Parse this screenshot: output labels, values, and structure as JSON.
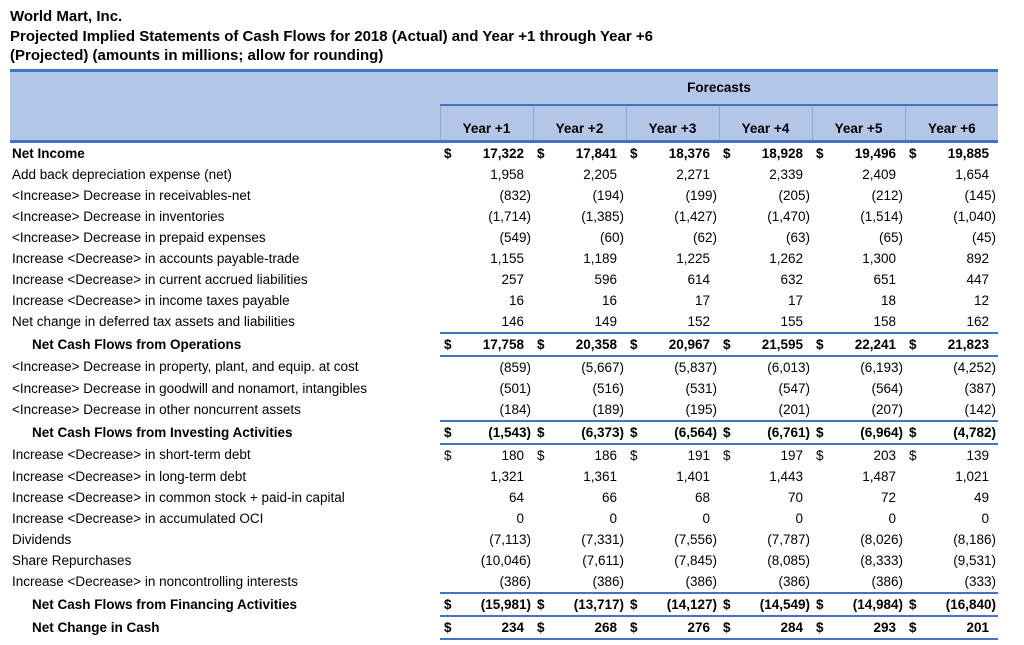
{
  "title": {
    "company": "World Mart, Inc.",
    "subtitle_line1": "Projected Implied Statements of Cash Flows for 2018 (Actual) and Year +1 through Year +6",
    "subtitle_line2": "(Projected) (amounts in millions; allow for rounding)"
  },
  "table": {
    "forecasts_label": "Forecasts",
    "currency_symbol": "$",
    "columns": [
      "Year +1",
      "Year +2",
      "Year +3",
      "Year +4",
      "Year +5",
      "Year +6"
    ],
    "rows": [
      {
        "label": "Net Income",
        "bold": true,
        "dollar": true,
        "total": false,
        "indent": false,
        "values": [
          "17,322",
          "17,841",
          "18,376",
          "18,928",
          "19,496",
          "19,885"
        ]
      },
      {
        "label": "Add back depreciation expense (net)",
        "bold": false,
        "dollar": false,
        "total": false,
        "indent": false,
        "values": [
          "1,958",
          "2,205",
          "2,271",
          "2,339",
          "2,409",
          "1,654"
        ]
      },
      {
        "label": "<Increase> Decrease in receivables-net",
        "bold": false,
        "dollar": false,
        "total": false,
        "indent": false,
        "values": [
          "(832)",
          "(194)",
          "(199)",
          "(205)",
          "(212)",
          "(145)"
        ]
      },
      {
        "label": "<Increase> Decrease in inventories",
        "bold": false,
        "dollar": false,
        "total": false,
        "indent": false,
        "values": [
          "(1,714)",
          "(1,385)",
          "(1,427)",
          "(1,470)",
          "(1,514)",
          "(1,040)"
        ]
      },
      {
        "label": "<Increase> Decrease in prepaid expenses",
        "bold": false,
        "dollar": false,
        "total": false,
        "indent": false,
        "values": [
          "(549)",
          "(60)",
          "(62)",
          "(63)",
          "(65)",
          "(45)"
        ]
      },
      {
        "label": "Increase <Decrease> in accounts payable-trade",
        "bold": false,
        "dollar": false,
        "total": false,
        "indent": false,
        "values": [
          "1,155",
          "1,189",
          "1,225",
          "1,262",
          "1,300",
          "892"
        ]
      },
      {
        "label": "Increase <Decrease> in current accrued liabilities",
        "bold": false,
        "dollar": false,
        "total": false,
        "indent": false,
        "values": [
          "257",
          "596",
          "614",
          "632",
          "651",
          "447"
        ]
      },
      {
        "label": "Increase <Decrease> in income taxes payable",
        "bold": false,
        "dollar": false,
        "total": false,
        "indent": false,
        "values": [
          "16",
          "16",
          "17",
          "17",
          "18",
          "12"
        ]
      },
      {
        "label": "Net change in deferred tax assets and liabilities",
        "bold": false,
        "dollar": false,
        "total": false,
        "indent": false,
        "values": [
          "146",
          "149",
          "152",
          "155",
          "158",
          "162"
        ]
      },
      {
        "label": "Net Cash Flows from Operations",
        "bold": true,
        "dollar": true,
        "total": true,
        "indent": true,
        "values": [
          "17,758",
          "20,358",
          "20,967",
          "21,595",
          "22,241",
          "21,823"
        ]
      },
      {
        "label": "<Increase> Decrease in property, plant, and equip. at cost",
        "bold": false,
        "dollar": false,
        "total": false,
        "indent": false,
        "values": [
          "(859)",
          "(5,667)",
          "(5,837)",
          "(6,013)",
          "(6,193)",
          "(4,252)"
        ]
      },
      {
        "label": "<Increase> Decrease in goodwill and nonamort, intangibles",
        "bold": false,
        "dollar": false,
        "total": false,
        "indent": false,
        "values": [
          "(501)",
          "(516)",
          "(531)",
          "(547)",
          "(564)",
          "(387)"
        ]
      },
      {
        "label": "<Increase> Decrease in other noncurrent assets",
        "bold": false,
        "dollar": false,
        "total": false,
        "indent": false,
        "values": [
          "(184)",
          "(189)",
          "(195)",
          "(201)",
          "(207)",
          "(142)"
        ]
      },
      {
        "label": "Net Cash Flows from Investing Activities",
        "bold": true,
        "dollar": true,
        "total": true,
        "indent": true,
        "values": [
          "(1,543)",
          "(6,373)",
          "(6,564)",
          "(6,761)",
          "(6,964)",
          "(4,782)"
        ]
      },
      {
        "label": "Increase <Decrease> in short-term debt",
        "bold": false,
        "dollar": true,
        "total": false,
        "indent": false,
        "values": [
          "180",
          "186",
          "191",
          "197",
          "203",
          "139"
        ]
      },
      {
        "label": "Increase <Decrease> in long-term debt",
        "bold": false,
        "dollar": false,
        "total": false,
        "indent": false,
        "values": [
          "1,321",
          "1,361",
          "1,401",
          "1,443",
          "1,487",
          "1,021"
        ]
      },
      {
        "label": "Increase <Decrease> in common stock + paid-in capital",
        "bold": false,
        "dollar": false,
        "total": false,
        "indent": false,
        "values": [
          "64",
          "66",
          "68",
          "70",
          "72",
          "49"
        ]
      },
      {
        "label": "Increase <Decrease> in accumulated OCI",
        "bold": false,
        "dollar": false,
        "total": false,
        "indent": false,
        "values": [
          "0",
          "0",
          "0",
          "0",
          "0",
          "0"
        ]
      },
      {
        "label": "Dividends",
        "bold": false,
        "dollar": false,
        "total": false,
        "indent": false,
        "values": [
          "(7,113)",
          "(7,331)",
          "(7,556)",
          "(7,787)",
          "(8,026)",
          "(8,186)"
        ]
      },
      {
        "label": "Share Repurchases",
        "bold": false,
        "dollar": false,
        "total": false,
        "indent": false,
        "values": [
          "(10,046)",
          "(7,611)",
          "(7,845)",
          "(8,085)",
          "(8,333)",
          "(9,531)"
        ]
      },
      {
        "label": "Increase <Decrease> in noncontrolling interests",
        "bold": false,
        "dollar": false,
        "total": false,
        "indent": false,
        "values": [
          "(386)",
          "(386)",
          "(386)",
          "(386)",
          "(386)",
          "(333)"
        ]
      },
      {
        "label": "Net Cash Flows from Financing Activities",
        "bold": true,
        "dollar": true,
        "total": true,
        "indent": true,
        "values": [
          "(15,981)",
          "(13,717)",
          "(14,127)",
          "(14,549)",
          "(14,984)",
          "(16,840)"
        ]
      },
      {
        "label": "Net Change in Cash",
        "bold": true,
        "dollar": true,
        "total": true,
        "indent": true,
        "values": [
          "234",
          "268",
          "276",
          "284",
          "293",
          "201"
        ]
      }
    ]
  },
  "colors": {
    "header_fill": "#b4c6e7",
    "border_blue": "#4472c4",
    "column_separator": "#8fa9d4",
    "text": "#000000"
  }
}
